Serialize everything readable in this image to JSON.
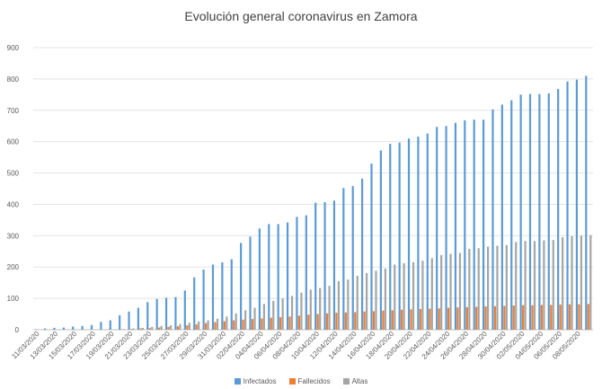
{
  "chart_data": {
    "type": "bar",
    "title": "Evolución general coronavirus en Zamora",
    "xlabel": "",
    "ylabel": "",
    "ylim": [
      0,
      900
    ],
    "yticks": [
      0,
      100,
      200,
      300,
      400,
      500,
      600,
      700,
      800,
      900
    ],
    "grid": true,
    "legend_position": "bottom",
    "categories": [
      "11/03/2020",
      "12/03/2020",
      "13/03/2020",
      "14/03/2020",
      "15/03/2020",
      "16/03/2020",
      "17/03/2020",
      "18/03/2020",
      "19/03/2020",
      "20/03/2020",
      "21/03/2020",
      "22/03/2020",
      "23/03/2020",
      "24/03/2020",
      "25/03/2020",
      "26/03/2020",
      "27/03/2020",
      "28/03/2020",
      "29/03/2020",
      "30/03/2020",
      "31/03/2020",
      "01/04/2020",
      "02/04/2020",
      "03/04/2020",
      "04/04/2020",
      "05/04/2020",
      "06/04/2020",
      "07/04/2020",
      "08/04/2020",
      "09/04/2020",
      "10/04/2020",
      "11/04/2020",
      "12/04/2020",
      "13/04/2020",
      "14/04/2020",
      "15/04/2020",
      "16/04/2020",
      "17/04/2020",
      "18/04/2020",
      "19/04/2020",
      "20/04/2020",
      "21/04/2020",
      "22/04/2020",
      "23/04/2020",
      "24/04/2020",
      "25/04/2020",
      "26/04/2020",
      "27/04/2020",
      "28/04/2020",
      "29/04/2020",
      "30/04/2020",
      "01/05/2020",
      "02/05/2020",
      "03/05/2020",
      "04/05/2020",
      "05/05/2020",
      "06/05/2020",
      "07/05/2020",
      "08/05/2020",
      "09/05/2020"
    ],
    "xtick_labels": [
      "11/03/2020",
      "",
      "13/03/2020",
      "",
      "15/03/2020",
      "",
      "17/03/2020",
      "",
      "19/03/2020",
      "",
      "21/03/2020",
      "",
      "23/03/2020",
      "",
      "25/03/2020",
      "",
      "27/03/2020",
      "",
      "29/03/2020",
      "",
      "31/03/2020",
      "",
      "02/04/2020",
      "",
      "04/04/2020",
      "",
      "06/04/2020",
      "",
      "08/04/2020",
      "",
      "10/04/2020",
      "",
      "12/04/2020",
      "",
      "14/04/2020",
      "",
      "16/04/2020",
      "",
      "18/04/2020",
      "",
      "20/04/2020",
      "",
      "22/04/2020",
      "",
      "24/04/2020",
      "",
      "26/04/2020",
      "",
      "28/04/2020",
      "",
      "30/04/2020",
      "",
      "02/05/2020",
      "",
      "04/05/2020",
      "",
      "06/05/2020",
      "",
      "08/05/2020",
      ""
    ],
    "series": [
      {
        "name": "Infectados",
        "color": "#5b9bd5",
        "values": [
          1,
          4,
          6,
          7,
          10,
          12,
          15,
          25,
          30,
          46,
          58,
          70,
          88,
          98,
          102,
          104,
          125,
          167,
          192,
          208,
          215,
          225,
          277,
          297,
          323,
          337,
          337,
          342,
          360,
          365,
          405,
          407,
          412,
          452,
          458,
          482,
          530,
          572,
          593,
          597,
          610,
          616,
          626,
          647,
          650,
          660,
          668,
          670,
          670,
          703,
          718,
          732,
          750,
          752,
          752,
          754,
          768,
          792,
          798,
          810
        ]
      },
      {
        "name": "Fallecidos",
        "color": "#ed7d31",
        "values": [
          0,
          0,
          0,
          0,
          0,
          0,
          0,
          0,
          0,
          1,
          2,
          4,
          5,
          7,
          9,
          11,
          14,
          17,
          21,
          24,
          27,
          30,
          32,
          34,
          36,
          38,
          40,
          42,
          45,
          48,
          50,
          52,
          54,
          55,
          56,
          58,
          59,
          61,
          62,
          64,
          65,
          66,
          67,
          68,
          70,
          71,
          72,
          73,
          74,
          75,
          76,
          77,
          78,
          78,
          79,
          79,
          80,
          81,
          81,
          82
        ]
      },
      {
        "name": "Altas",
        "color": "#a5a5a5",
        "values": [
          0,
          0,
          0,
          0,
          0,
          0,
          0,
          0,
          0,
          2,
          4,
          6,
          9,
          12,
          14,
          18,
          22,
          26,
          30,
          35,
          42,
          52,
          62,
          70,
          82,
          92,
          100,
          108,
          118,
          128,
          133,
          140,
          155,
          160,
          172,
          181,
          188,
          195,
          208,
          212,
          215,
          220,
          228,
          238,
          242,
          245,
          258,
          260,
          265,
          268,
          270,
          280,
          283,
          283,
          285,
          286,
          295,
          298,
          300,
          302
        ]
      }
    ]
  }
}
